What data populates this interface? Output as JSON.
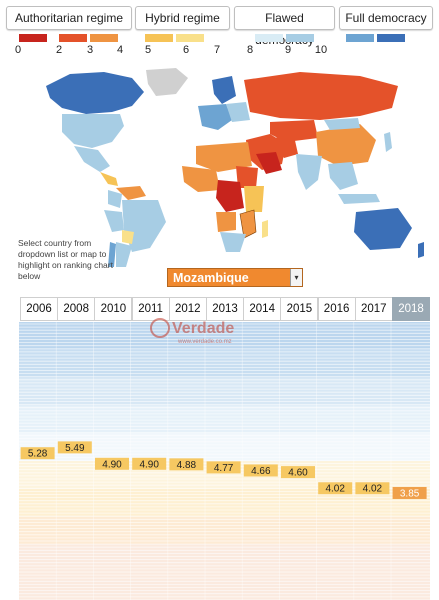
{
  "legend": {
    "regimes": [
      {
        "label": "Authoritarian regime"
      },
      {
        "label": "Hybrid regime"
      },
      {
        "label": "Flawed democracy"
      },
      {
        "label": "Full democracy"
      }
    ],
    "scale": [
      {
        "value": "0",
        "color": "#c7241d"
      },
      {
        "value": "2",
        "color": "#e4522a"
      },
      {
        "value": "3",
        "color": "#ef9442"
      },
      {
        "value": "4",
        "color": "#f6c356"
      },
      {
        "value": "5",
        "color": "#f9e08a"
      },
      {
        "value": "6",
        "color": "#d9ecf5"
      },
      {
        "value": "7",
        "color": "#a7cde4"
      },
      {
        "value": "8",
        "color": "#6da4d2"
      },
      {
        "value": "9",
        "color": "#3b6fb7"
      },
      {
        "value": "10",
        "color": ""
      }
    ]
  },
  "map": {
    "note": "Select country from dropdown list or map to highlight on ranking chart below"
  },
  "selector": {
    "value": "Mozambique",
    "arrow": "▾"
  },
  "watermark": {
    "text": "Verdade",
    "sub": "www.verdade.co.mz"
  },
  "chart_data": {
    "type": "line",
    "country": "Mozambique",
    "x": [
      "2006",
      "2008",
      "2010",
      "2011",
      "2012",
      "2013",
      "2014",
      "2015",
      "2016",
      "2017",
      "2018"
    ],
    "values": [
      5.28,
      5.49,
      4.9,
      4.9,
      4.88,
      4.77,
      4.66,
      4.6,
      4.02,
      4.02,
      3.85
    ],
    "labels": [
      "5.28",
      "5.49",
      "4.90",
      "4.90",
      "4.88",
      "4.77",
      "4.66",
      "4.60",
      "4.02",
      "4.02",
      "3.85"
    ],
    "ylim": [
      0,
      10
    ],
    "selected_year": "2018"
  }
}
